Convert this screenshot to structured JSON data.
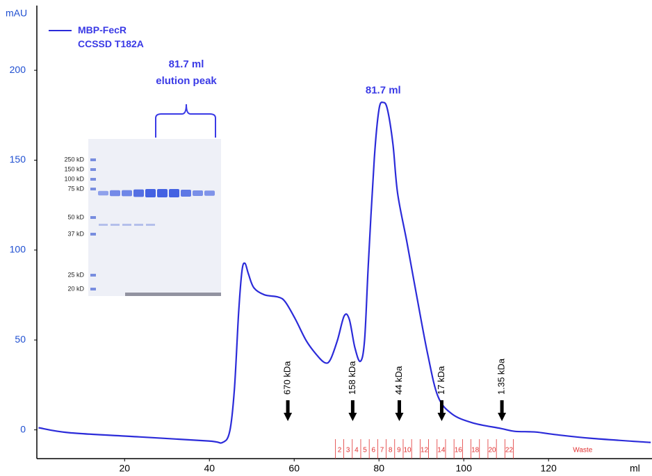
{
  "chart_data": {
    "type": "line",
    "y_label": "mAU",
    "x_label": "ml",
    "xlim": [
      -0.7,
      144.4
    ],
    "ylim": [
      -16,
      236
    ],
    "xticks": [
      20,
      40,
      60,
      80,
      100,
      120
    ],
    "yticks": [
      0,
      50,
      100,
      150,
      200
    ],
    "x": [
      -0.3,
      7.0,
      23.4,
      39.8,
      43.1,
      44.8,
      45.9,
      46.9,
      47.7,
      48.4,
      49.2,
      50.5,
      53.0,
      56.2,
      57.9,
      60.3,
      62.8,
      65.2,
      67.2,
      68.5,
      70.2,
      71.8,
      73.0,
      74.3,
      75.6,
      76.6,
      77.5,
      78.9,
      80.0,
      81.0,
      82.0,
      83.3,
      84.4,
      86.6,
      89.0,
      91.5,
      93.9,
      97.2,
      102.1,
      108.7,
      112.0,
      116.9,
      121.8,
      130.0,
      144.1
    ],
    "series": [
      {
        "name": "MBP-FecR CCSSD T182A",
        "color": "#2b2bd9",
        "values": [
          1.2,
          -1.6,
          -3.9,
          -6.2,
          -7.0,
          -0.8,
          22.6,
          65.4,
          88.7,
          92.6,
          86.8,
          79.0,
          75.1,
          73.9,
          71.2,
          61.5,
          49.8,
          42.0,
          37.4,
          38.9,
          49.8,
          63.4,
          61.5,
          45.9,
          38.1,
          49.8,
          92.6,
          151.0,
          178.2,
          182.1,
          178.2,
          158.8,
          131.5,
          104.3,
          73.2,
          42.0,
          18.7,
          8.9,
          3.9,
          0.8,
          -0.8,
          -1.2,
          -2.7,
          -4.7,
          -7.0
        ]
      }
    ],
    "peak_label": "81.7 ml",
    "markers": [
      {
        "label": "670 kDa",
        "x": 58.5
      },
      {
        "label": "158 kDa",
        "x": 73.8
      },
      {
        "label": "44 kDa",
        "x": 84.8
      },
      {
        "label": "17 kDa",
        "x": 94.8
      },
      {
        "label": "1.35 kDa",
        "x": 109.0
      }
    ],
    "fractions": {
      "edges": [
        69.7,
        71.7,
        73.7,
        75.7,
        77.7,
        79.7,
        81.7,
        83.7,
        85.7,
        87.7,
        89.7,
        91.7,
        93.7,
        95.7,
        97.7,
        99.7,
        101.7,
        103.7,
        105.7,
        107.7,
        109.7,
        111.7
      ],
      "labels": [
        "2",
        "3",
        "4",
        "5",
        "6",
        "7",
        "8",
        "9",
        "10",
        null,
        "12",
        null,
        "14",
        null,
        "16",
        null,
        "18",
        null,
        "20",
        null,
        "22"
      ],
      "waste_label": "Waste",
      "color": "#e03030"
    }
  },
  "gel": {
    "title_lines": [
      "81.7 ml",
      "elution peak"
    ],
    "markers": [
      "250 kD",
      "150 kD",
      "100 kD",
      "75 kD",
      "50 kD",
      "37 kD",
      "25 kD",
      "20 kD"
    ]
  }
}
